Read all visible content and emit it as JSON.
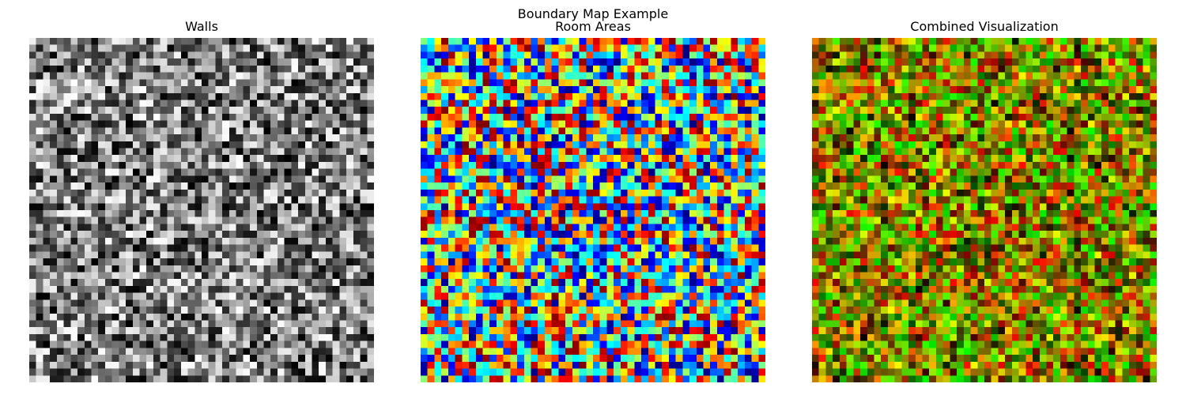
{
  "figure": {
    "suptitle": "Boundary Map Example"
  },
  "chart_data": [
    {
      "type": "heatmap",
      "title": "Walls",
      "grid_size": [
        50,
        50
      ],
      "colormap": "gray",
      "value_range": [
        0,
        1
      ],
      "axes_visible": false,
      "pattern": "random noise"
    },
    {
      "type": "heatmap",
      "title": "Room Areas",
      "grid_size": [
        50,
        50
      ],
      "colormap": "jet",
      "value_range": [
        0,
        1
      ],
      "axes_visible": false,
      "pattern": "random noise"
    },
    {
      "type": "heatmap",
      "title": "Combined Visualization",
      "grid_size": [
        50,
        50
      ],
      "colormap": "rgb composite (red = walls, green = room areas)",
      "value_range": [
        0,
        1
      ],
      "axes_visible": false,
      "pattern": "random noise"
    }
  ],
  "colors": {
    "background": "#ffffff",
    "text": "#000000"
  }
}
